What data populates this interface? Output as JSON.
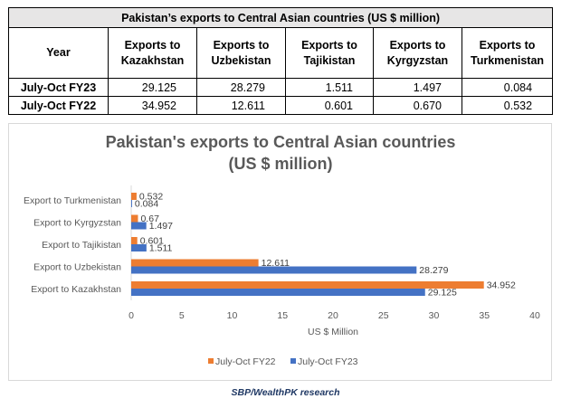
{
  "table": {
    "title": "Pakistan’s exports to Central Asian countries (US $ million)",
    "headers": [
      "Year",
      "Exports to\nKazakhstan",
      "Exports to\nUzbekistan",
      "Exports to\nTajikistan",
      "Exports to\nKyrgyzstan",
      "Exports to\nTurkmenistan"
    ],
    "rows": [
      {
        "year": "July-Oct FY23",
        "values": [
          "29.125",
          "28.279",
          "1.511",
          "1.497",
          "0.084"
        ]
      },
      {
        "year": "July-Oct FY22",
        "values": [
          "34.952",
          "12.611",
          "0.601",
          "0.670",
          "0.532"
        ]
      }
    ]
  },
  "chart_data": {
    "type": "bar",
    "orientation": "horizontal",
    "title": "Pakistan's exports to Central Asian countries",
    "subtitle": "(US $ million)",
    "xlabel": "US $ Million",
    "ylabel": "",
    "categories": [
      "Export to Kazakhstan",
      "Export to Uzbekistan",
      "Export to Tajikistan",
      "Export to Kyrgyzstan",
      "Export to Turkmenistan"
    ],
    "series": [
      {
        "name": "July-Oct FY22",
        "color": "#ed7d31",
        "values": [
          34.952,
          12.611,
          0.601,
          0.67,
          0.532
        ],
        "labels": [
          "34.952",
          "12.611",
          "0.601",
          "0.67",
          "0.532"
        ]
      },
      {
        "name": "July-Oct FY23",
        "color": "#4472c4",
        "values": [
          29.125,
          28.279,
          1.511,
          1.497,
          0.084
        ],
        "labels": [
          "29.125",
          "28.279",
          "1.511",
          "1.497",
          "0.084"
        ]
      }
    ],
    "xlim": [
      0,
      40
    ],
    "xticks": [
      "0",
      "5",
      "10",
      "15",
      "20",
      "25",
      "30",
      "35",
      "40"
    ],
    "grid": false,
    "legend_position": "bottom"
  },
  "source": "SBP/WealthPK research"
}
